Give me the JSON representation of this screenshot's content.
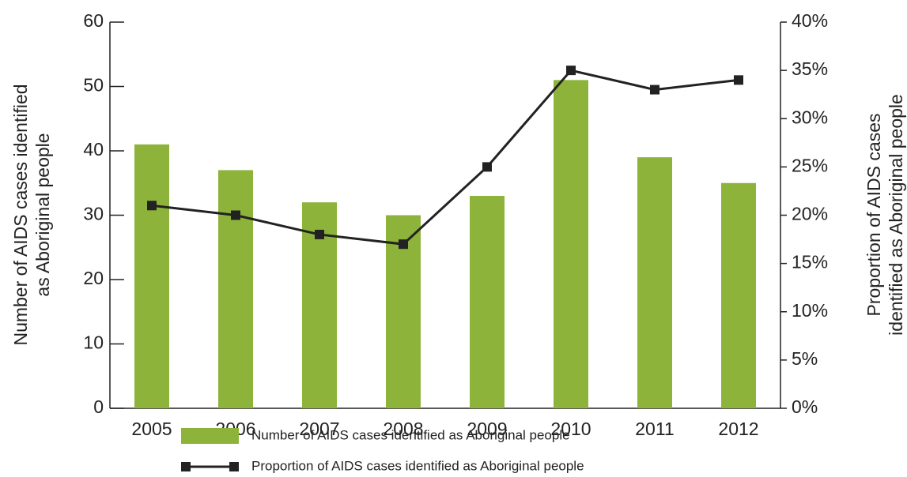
{
  "chart_data": {
    "type": "bar_line",
    "categories": [
      "2005",
      "2006",
      "2007",
      "2008",
      "2009",
      "2010",
      "2011",
      "2012"
    ],
    "ylabel": [
      "Number of AIDS cases identified",
      "as Aboriginal people"
    ],
    "y2label": [
      "Proportion of AIDS cases",
      "identified as Aboriginal people"
    ],
    "ylim": [
      0,
      60
    ],
    "yticks": [
      0,
      10,
      20,
      30,
      40,
      50,
      60
    ],
    "y2lim": [
      0,
      40
    ],
    "y2ticks": [
      {
        "value": 0,
        "label": "0%"
      },
      {
        "value": 5,
        "label": "5%"
      },
      {
        "value": 10,
        "label": "10%"
      },
      {
        "value": 15,
        "label": "15%"
      },
      {
        "value": 20,
        "label": "20%"
      },
      {
        "value": 25,
        "label": "25%"
      },
      {
        "value": 30,
        "label": "30%"
      },
      {
        "value": 35,
        "label": "35%"
      },
      {
        "value": 40,
        "label": "40%"
      }
    ],
    "series": [
      {
        "name": "Number of AIDS cases identified as Aboriginal people",
        "type": "bar",
        "color": "#8db33a",
        "values": [
          41,
          37,
          32,
          30,
          33,
          51,
          39,
          35
        ]
      },
      {
        "name": "Proportion of AIDS cases identified as Aboriginal people",
        "type": "line",
        "axis": "y2",
        "color": "#222222",
        "values": [
          21,
          20,
          18,
          17,
          25,
          35,
          33,
          34
        ]
      }
    ]
  }
}
